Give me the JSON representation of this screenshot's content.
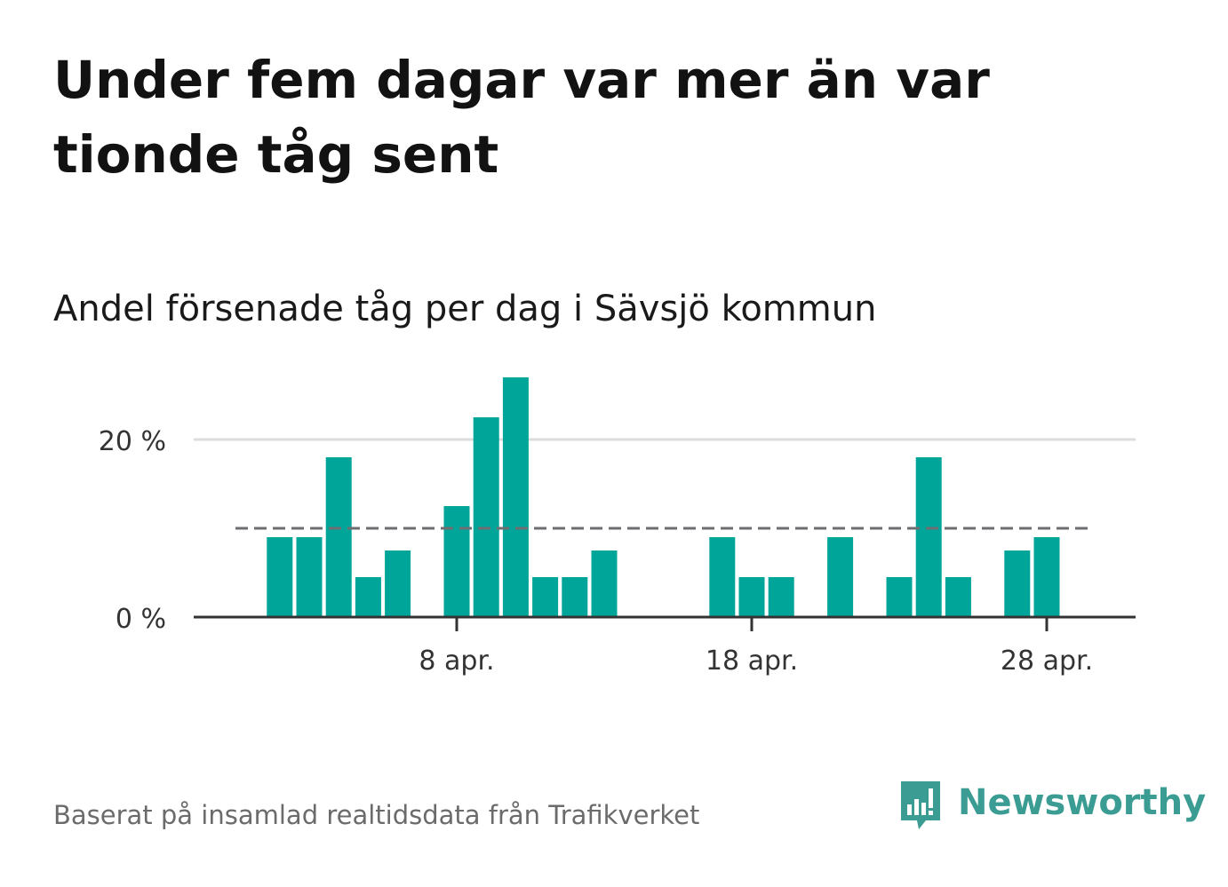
{
  "title": "Under fem dagar var mer än var tionde tåg sent",
  "subtitle": "Andel försenade tåg per dag i Sävsjö kommun",
  "source": "Baserat på insamlad realtidsdata från Trafikverket",
  "brand": {
    "name": "Newsworthy",
    "logo_icon": "bar-chart-speech-bubble-icon"
  },
  "colors": {
    "bar": "#00a59a",
    "average_line": "#6e6e72",
    "gridline": "#dddddd",
    "axis": "#333333",
    "tick_label": "#333333",
    "brand": "#3b9c93"
  },
  "chart_data": {
    "type": "bar",
    "title": "Andel försenade tåg per dag i Sävsjö kommun",
    "xlabel": "",
    "ylabel": "",
    "ylim": [
      0,
      27.5
    ],
    "y_ticks": [
      {
        "value": 0,
        "label": "0 %"
      },
      {
        "value": 20,
        "label": "20 %"
      }
    ],
    "x_range": [
      -1,
      29.9
    ],
    "x_ticks": [
      {
        "day": 8,
        "label": "8 apr."
      },
      {
        "day": 18,
        "label": "18 apr."
      },
      {
        "day": 28,
        "label": "28 apr."
      }
    ],
    "grid": true,
    "average": {
      "value": 10,
      "x_start": 0.5,
      "x_end": 29.5
    },
    "bars": [
      {
        "day": 1,
        "value": 0
      },
      {
        "day": 2,
        "value": 9
      },
      {
        "day": 3,
        "value": 9
      },
      {
        "day": 4,
        "value": 18
      },
      {
        "day": 5,
        "value": 4.5
      },
      {
        "day": 6,
        "value": 7.5
      },
      {
        "day": 7,
        "value": 0
      },
      {
        "day": 8,
        "value": 12.5
      },
      {
        "day": 9,
        "value": 22.5
      },
      {
        "day": 10,
        "value": 27
      },
      {
        "day": 11,
        "value": 4.5
      },
      {
        "day": 12,
        "value": 4.5
      },
      {
        "day": 13,
        "value": 7.5
      },
      {
        "day": 14,
        "value": 0
      },
      {
        "day": 15,
        "value": 0
      },
      {
        "day": 16,
        "value": 0
      },
      {
        "day": 17,
        "value": 9
      },
      {
        "day": 18,
        "value": 4.5
      },
      {
        "day": 19,
        "value": 4.5
      },
      {
        "day": 20,
        "value": 0
      },
      {
        "day": 21,
        "value": 9
      },
      {
        "day": 22,
        "value": 0
      },
      {
        "day": 23,
        "value": 4.5
      },
      {
        "day": 24,
        "value": 18
      },
      {
        "day": 25,
        "value": 4.5
      },
      {
        "day": 26,
        "value": 0
      },
      {
        "day": 27,
        "value": 7.5
      },
      {
        "day": 28,
        "value": 9
      },
      {
        "day": 29,
        "value": 0
      }
    ]
  }
}
